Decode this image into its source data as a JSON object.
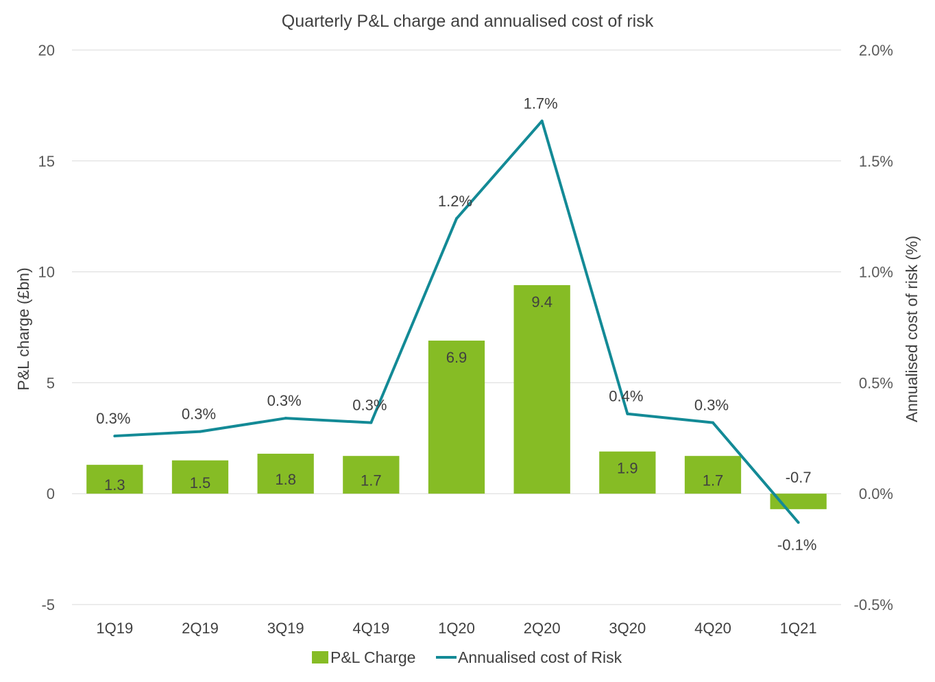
{
  "chart_data": {
    "type": "bar",
    "title": "Quarterly P&L charge and annualised cost of risk",
    "ylabel": "P&L charge (£bn)",
    "y2label": "Annualised cost of risk (%)",
    "ylim": [
      -5,
      20
    ],
    "y2lim": [
      -0.5,
      2.0
    ],
    "yticks": [
      -5,
      0,
      5,
      10,
      15,
      20
    ],
    "yticklabels": [
      "-5",
      "0",
      "5",
      "10",
      "15",
      "20"
    ],
    "y2ticks": [
      -0.5,
      0.0,
      0.5,
      1.0,
      1.5,
      2.0
    ],
    "y2ticklabels": [
      "-0.5%",
      "0.0%",
      "0.5%",
      "1.0%",
      "1.5%",
      "2.0%"
    ],
    "grid": true,
    "legend_position": "bottom",
    "categories": [
      "1Q19",
      "2Q19",
      "3Q19",
      "4Q19",
      "1Q20",
      "2Q20",
      "3Q20",
      "4Q20",
      "1Q21"
    ],
    "series": [
      {
        "name": "P&L Charge",
        "type": "bar",
        "axis": "left",
        "color": "#86bc25",
        "values": [
          1.3,
          1.5,
          1.8,
          1.7,
          6.9,
          9.4,
          1.9,
          1.7,
          -0.7
        ],
        "labels": [
          "1.3",
          "1.5",
          "1.8",
          "1.7",
          "6.9",
          "9.4",
          "1.9",
          "1.7",
          "-0.7"
        ]
      },
      {
        "name": "Annualised cost of Risk",
        "type": "line",
        "axis": "right",
        "color": "#138a96",
        "values": [
          0.26,
          0.28,
          0.34,
          0.32,
          1.24,
          1.68,
          0.36,
          0.32,
          -0.13
        ],
        "labels": [
          "0.3%",
          "0.3%",
          "0.3%",
          "0.3%",
          "1.2%",
          "1.7%",
          "0.4%",
          "0.3%",
          "-0.1%"
        ]
      }
    ]
  }
}
